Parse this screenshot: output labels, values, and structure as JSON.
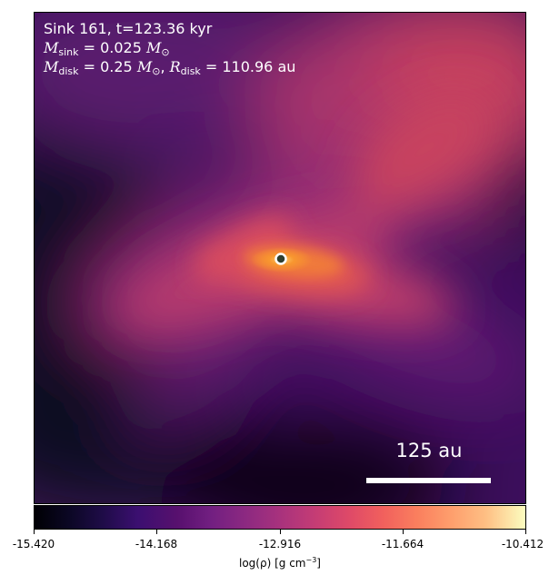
{
  "header": {
    "title": "Sink 161, t=123.36 kyr",
    "mass_sink": {
      "sym": "M",
      "sub": "sink",
      "text": " = 0.025 ",
      "unit": "M",
      "unit_sub": "⊙"
    },
    "mass_disk": {
      "sym": "M",
      "sub": "disk",
      "text": " = 0.25 ",
      "unit": "M",
      "unit_sub": "⊙"
    },
    "radius_disk": {
      "sep": ", ",
      "sym": "R",
      "sub": "disk",
      "text": " = 110.96 au"
    }
  },
  "scale_bar": {
    "label": "125 au"
  },
  "colorbar": {
    "cmap": "inferno",
    "vmin": -15.42,
    "vmax": -10.412,
    "ticks": [
      "-15.420",
      "-14.168",
      "-12.916",
      "-11.664",
      "-10.412"
    ],
    "label_prefix": "log(ρ) [g cm",
    "label_exp": "−3",
    "label_suffix": "]"
  },
  "colors": {
    "sink_marker_fill": "#2f3f2f",
    "sink_marker_ring": "#ffffff"
  }
}
